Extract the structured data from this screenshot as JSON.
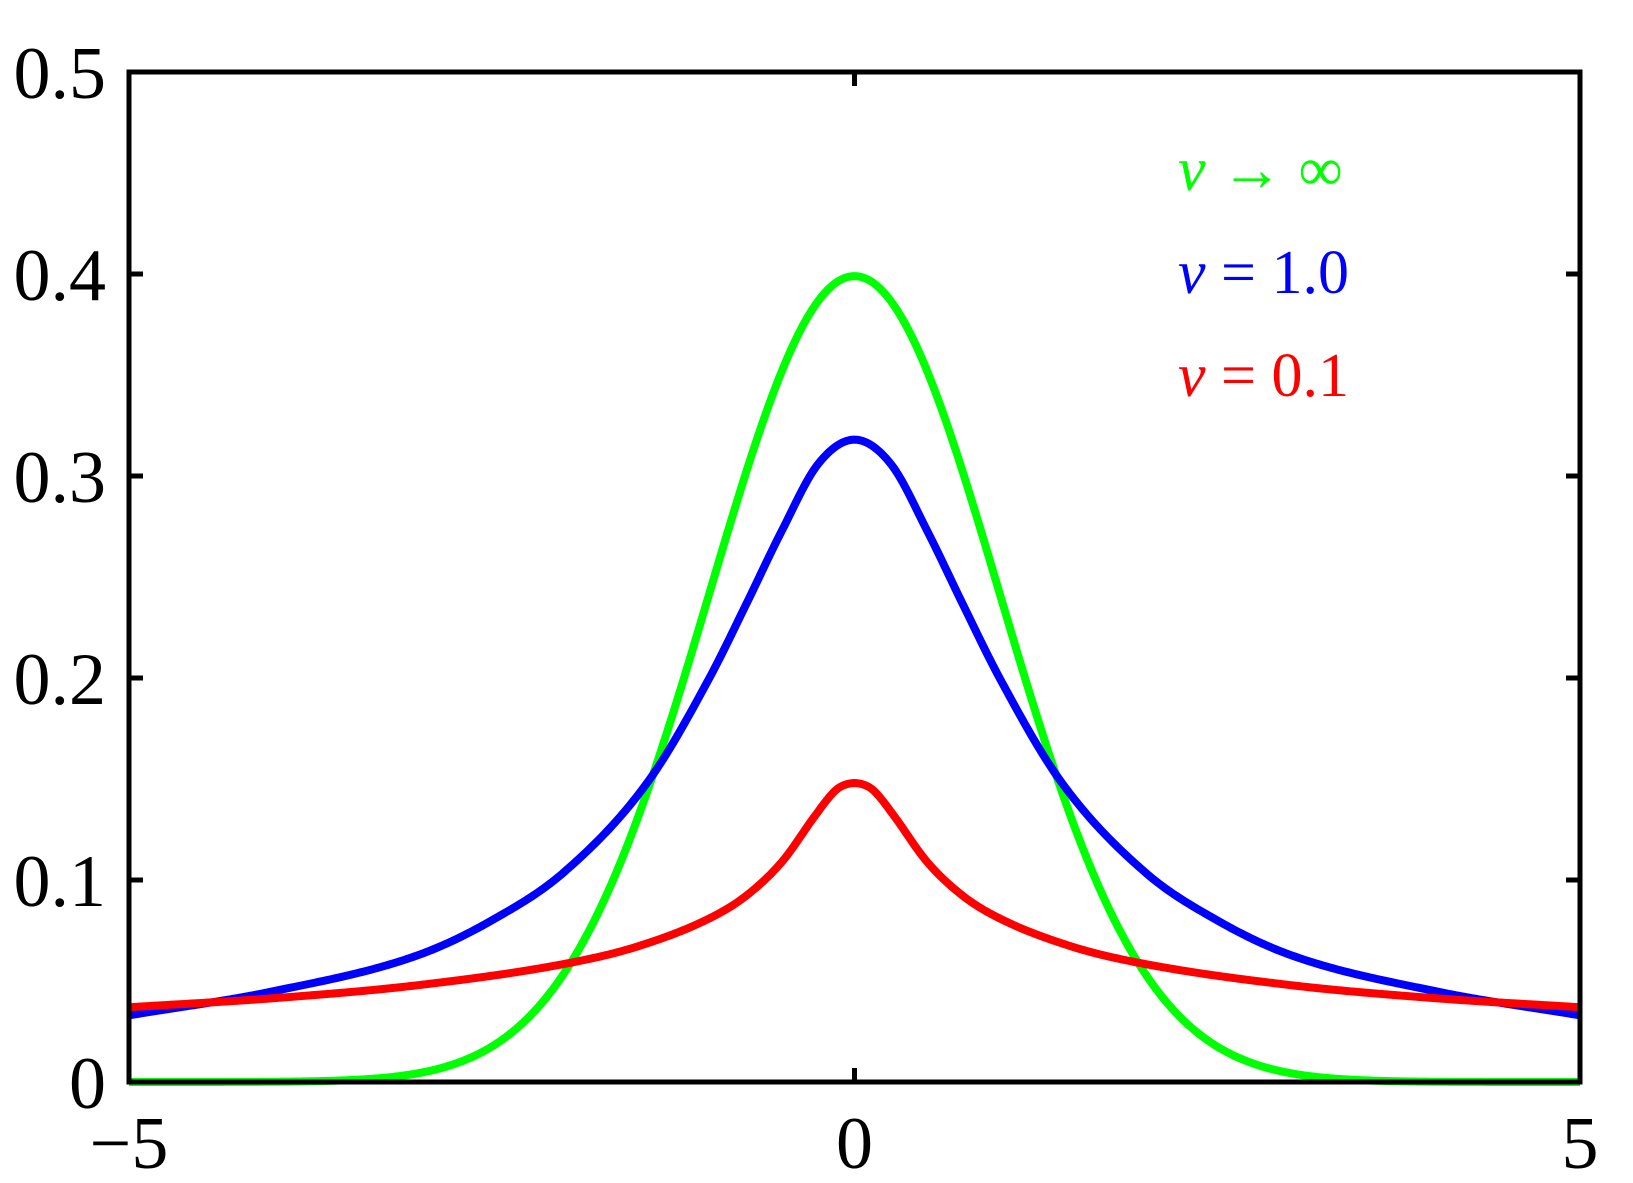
{
  "chart_data": {
    "type": "line",
    "title": "",
    "xlabel": "",
    "ylabel": "",
    "xlim": [
      -5,
      5
    ],
    "ylim": [
      0,
      0.5
    ],
    "grid": false,
    "legend_position": "upper right (inside, text only)",
    "x_ticks": [
      -5,
      0,
      5
    ],
    "x_tick_labels": [
      "−5",
      "0",
      "5"
    ],
    "y_ticks": [
      0,
      0.1,
      0.2,
      0.3,
      0.4,
      0.5
    ],
    "y_tick_labels": [
      "0",
      "0.1",
      "0.2",
      "0.3",
      "0.4",
      "0.5"
    ],
    "series": [
      {
        "name": "ν → ∞",
        "label_parts": [
          "ν",
          " → ",
          "∞"
        ],
        "color": "#00ff00",
        "kind": "gaussian",
        "params": {
          "mean": 0,
          "std": 1
        },
        "x": [
          0,
          0.5,
          1,
          1.42,
          1.96,
          2.5,
          3,
          4,
          5
        ],
        "y": [
          0.399,
          0.352,
          0.242,
          0.146,
          0.059,
          0.0175,
          0.0044,
          0.0001,
          0.0
        ]
      },
      {
        "name": "ν = 1.0",
        "label_parts": [
          "ν",
          " = ",
          "1.0"
        ],
        "color": "#0000ff",
        "kind": "samples",
        "x": [
          0,
          0.25,
          0.5,
          0.75,
          1,
          1.42,
          2,
          2.5,
          3,
          4,
          5
        ],
        "y": [
          0.318,
          0.306,
          0.273,
          0.236,
          0.2,
          0.149,
          0.104,
          0.08,
          0.063,
          0.045,
          0.033
        ]
      },
      {
        "name": "ν = 0.1",
        "label_parts": [
          "ν",
          " = ",
          "0.1"
        ],
        "color": "#ff0000",
        "kind": "samples",
        "x": [
          0,
          0.1,
          0.15,
          0.27,
          0.5,
          0.75,
          1,
          1.5,
          1.96,
          3,
          4,
          5
        ],
        "y": [
          0.148,
          0.146,
          0.143,
          0.132,
          0.109,
          0.092,
          0.081,
          0.067,
          0.059,
          0.048,
          0.0415,
          0.037
        ]
      }
    ]
  }
}
